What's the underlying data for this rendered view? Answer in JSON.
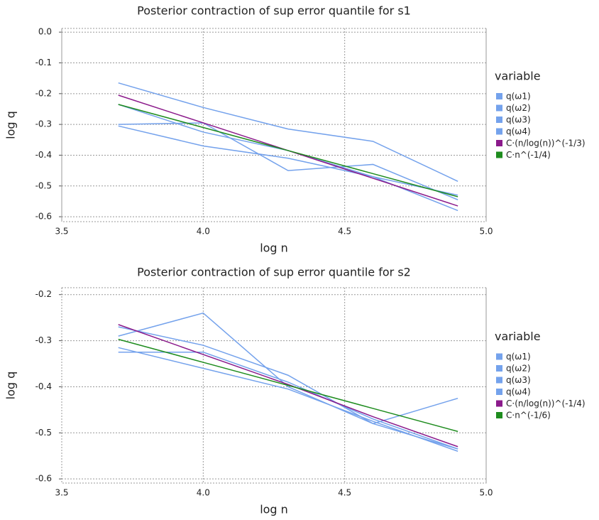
{
  "chart_data": [
    {
      "type": "line",
      "title": "Posterior contraction of sup error quantile for s1",
      "x_label": "log n",
      "y_label": "log q",
      "x": [
        3.7,
        4.0,
        4.3,
        4.6,
        4.9
      ],
      "series": [
        {
          "name": "q(ω1)",
          "color": "#74a2ec",
          "values": [
            -0.165,
            -0.245,
            -0.315,
            -0.355,
            -0.485
          ]
        },
        {
          "name": "q(ω2)",
          "color": "#74a2ec",
          "values": [
            -0.235,
            -0.325,
            -0.385,
            -0.47,
            -0.53
          ]
        },
        {
          "name": "q(ω3)",
          "color": "#74a2ec",
          "values": [
            -0.3,
            -0.295,
            -0.45,
            -0.43,
            -0.545
          ]
        },
        {
          "name": "q(ω4)",
          "color": "#74a2ec",
          "values": [
            -0.305,
            -0.37,
            -0.41,
            -0.47,
            -0.58
          ]
        },
        {
          "name": "C·(n/log(n))^(-1/3)",
          "color": "#8b1a8b",
          "values": [
            -0.205,
            -0.295,
            -0.385,
            -0.475,
            -0.565
          ]
        },
        {
          "name": "C·n^(-1/4)",
          "color": "#1e8c1e",
          "values": [
            -0.235,
            -0.31,
            -0.385,
            -0.46,
            -0.535
          ]
        }
      ],
      "legend_title": "variable",
      "xlim": [
        3.5,
        5.0
      ],
      "xticks": [
        3.5,
        {
          "value": 4.0,
          "label": "4.0"
        },
        4.5,
        {
          "value": 5.0,
          "label": "5.0"
        }
      ],
      "ylim": [
        -0.616,
        0.012
      ],
      "yticks": [
        {
          "value": 0,
          "label": "0.0"
        },
        -0.1,
        -0.2,
        -0.3,
        -0.4,
        -0.5,
        -0.6
      ],
      "grid": true
    },
    {
      "type": "line",
      "title": "Posterior contraction of sup error quantile for s2",
      "x_label": "log n",
      "y_label": "log q",
      "x": [
        3.7,
        4.0,
        4.3,
        4.6,
        4.9
      ],
      "series": [
        {
          "name": "q(ω1)",
          "color": "#74a2ec",
          "values": [
            -0.29,
            -0.24,
            -0.4,
            -0.48,
            -0.425
          ]
        },
        {
          "name": "q(ω2)",
          "color": "#74a2ec",
          "values": [
            -0.27,
            -0.31,
            -0.375,
            -0.48,
            -0.535
          ]
        },
        {
          "name": "q(ω3)",
          "color": "#74a2ec",
          "values": [
            -0.315,
            -0.36,
            -0.405,
            -0.475,
            -0.54
          ]
        },
        {
          "name": "q(ω4)",
          "color": "#74a2ec",
          "values": [
            -0.325,
            -0.325,
            -0.39,
            -0.47,
            -0.535
          ]
        },
        {
          "name": "C·(n/log(n))^(-1/4)",
          "color": "#8b1a8b",
          "values": [
            -0.265,
            -0.33,
            -0.395,
            -0.465,
            -0.53
          ]
        },
        {
          "name": "C·n^(-1/6)",
          "color": "#1e8c1e",
          "values": [
            -0.297,
            -0.347,
            -0.397,
            -0.447,
            -0.497
          ]
        }
      ],
      "legend_title": "variable",
      "xlim": [
        3.5,
        5.0
      ],
      "xticks": [
        3.5,
        {
          "value": 4.0,
          "label": "4.0"
        },
        4.5,
        {
          "value": 5.0,
          "label": "5.0"
        }
      ],
      "ylim": [
        -0.609,
        -0.185
      ],
      "yticks": [
        -0.2,
        -0.3,
        -0.4,
        -0.5,
        -0.6
      ],
      "grid": true
    }
  ]
}
